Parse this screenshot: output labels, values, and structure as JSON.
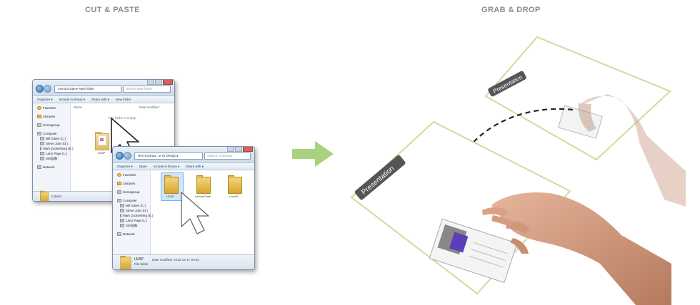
{
  "headings": {
    "left": "CUT & PASTE",
    "right": "GRAB & DROP"
  },
  "colors": {
    "heading": "#8a8a8a",
    "arrow": "#a7d37f",
    "slide_border": "#cfdc9e",
    "label_bg": "#555555",
    "window_frame": "#dce7f2"
  },
  "arrow_icon": "right-arrow-icon",
  "window1": {
    "address": "LemonCrate ▸ New folder",
    "search_placeholder": "Search New folder",
    "toolbar": [
      "Organize ▾",
      "Include in library ▾",
      "Share with ▾",
      "New folder"
    ],
    "nav": [
      {
        "label": "Favorites",
        "icon": "star-icon"
      },
      {
        "label": "Libraries",
        "icon": "library-icon"
      },
      {
        "label": "Homegroup",
        "icon": "homegroup-icon"
      },
      {
        "label": "Computer",
        "icon": "computer-icon"
      },
      {
        "label": "Bill Gates (C:)",
        "icon": "drive-icon"
      },
      {
        "label": "Steve Jobs (D:)",
        "icon": "drive-icon"
      },
      {
        "label": "Mark Zuckerberg (E:)",
        "icon": "drive-icon"
      },
      {
        "label": "Larry Page (L:)",
        "icon": "drive-icon"
      },
      {
        "label": "SW设备",
        "icon": "drive-icon"
      },
      {
        "label": "Network",
        "icon": "network-icon"
      }
    ],
    "columns": [
      "Name",
      "Date modified"
    ],
    "empty_message": "This folder is empty.",
    "folder_label": "LEAP",
    "status": "0 items"
  },
  "window2": {
    "address": "Ren Kochaw... ▸ UI Design ▸",
    "search_placeholder": "Search UI Design",
    "toolbar": [
      "Organize ▾",
      "Open",
      "Include in library ▾",
      "Share with ▾"
    ],
    "nav": [
      {
        "label": "Favorites",
        "icon": "star-icon"
      },
      {
        "label": "Libraries",
        "icon": "library-icon"
      },
      {
        "label": "Homegroup",
        "icon": "homegroup-icon"
      },
      {
        "label": "Computer",
        "icon": "computer-icon"
      },
      {
        "label": "Bill Gates (C:)",
        "icon": "drive-icon"
      },
      {
        "label": "Steve Jobs (D:)",
        "icon": "drive-icon"
      },
      {
        "label": "Mark Zuckerberg (E:)",
        "icon": "drive-icon"
      },
      {
        "label": "Larry Page (L:)",
        "icon": "drive-icon"
      },
      {
        "label": "SW设备",
        "icon": "drive-icon"
      },
      {
        "label": "Network",
        "icon": "network-icon"
      }
    ],
    "folders": [
      "LEAP",
      "LemonCrate",
      "LiveAD"
    ],
    "details": {
      "name": "LEAP",
      "date": "Date modified: 2012-12-17 20:52",
      "type": "File folder"
    }
  },
  "slides": {
    "back_label": "Presentation",
    "front_label": "Presentation"
  }
}
